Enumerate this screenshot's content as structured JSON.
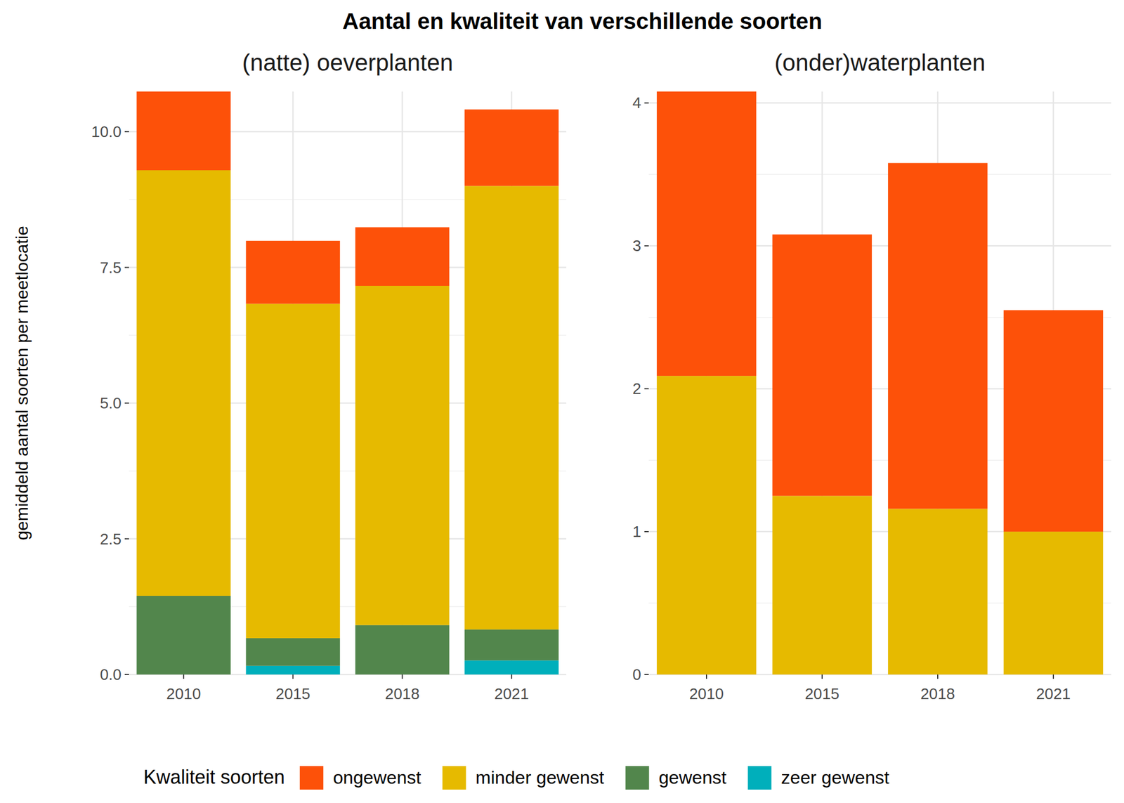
{
  "title": "Aantal en kwaliteit van verschillende soorten",
  "legend_title": "Kwaliteit soorten",
  "chart_data": [
    {
      "type": "bar",
      "stacked": true,
      "grid": true,
      "subtitle": "(natte) oeverplanten",
      "y_label": "gemiddeld aantal soorten per meetlocatie",
      "categories": [
        "2010",
        "2015",
        "2018",
        "2021"
      ],
      "ylim": [
        0,
        10.74
      ],
      "yticks": [
        {
          "value": 0,
          "label": "0.0"
        },
        2.5,
        {
          "value": 5,
          "label": "5.0"
        },
        7.5,
        {
          "value": 10,
          "label": "10.0"
        }
      ],
      "series": [
        {
          "name": "ongewenst",
          "color": "#FD5109",
          "values": [
            1.45,
            1.16,
            1.08,
            1.41
          ]
        },
        {
          "name": "minder gewenst",
          "color": "#E6BA00",
          "values": [
            7.84,
            6.16,
            6.25,
            8.17
          ]
        },
        {
          "name": "gewenst",
          "color": "#52864C",
          "values": [
            1.45,
            0.51,
            0.91,
            0.57
          ]
        },
        {
          "name": "zeer gewenst",
          "color": "#00AFBB",
          "values": [
            0,
            0.16,
            0,
            0.26
          ]
        }
      ]
    },
    {
      "type": "bar",
      "stacked": true,
      "grid": true,
      "subtitle": "(onder)waterplanten",
      "categories": [
        "2010",
        "2015",
        "2018",
        "2021"
      ],
      "ylim": [
        0,
        4.08
      ],
      "yticks": [
        0,
        1,
        2,
        3,
        4
      ],
      "series": [
        {
          "name": "ongewenst",
          "color": "#FD5109",
          "values": [
            1.99,
            1.83,
            2.42,
            1.55
          ]
        },
        {
          "name": "minder gewenst",
          "color": "#E6BA00",
          "values": [
            2.09,
            1.25,
            1.16,
            1.0
          ]
        }
      ]
    }
  ]
}
